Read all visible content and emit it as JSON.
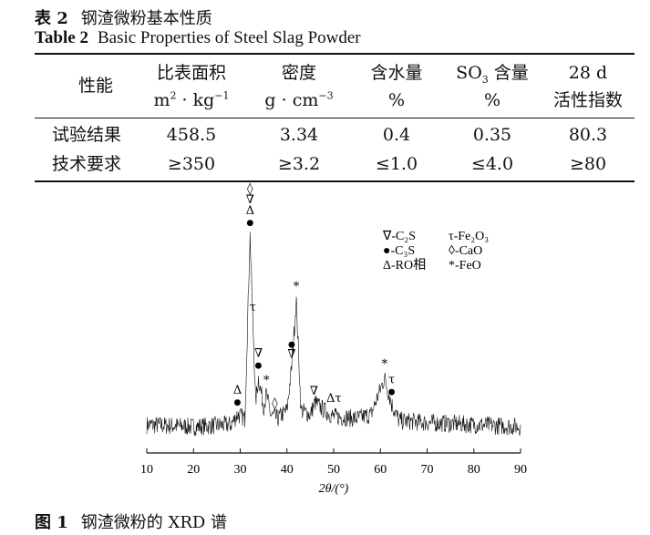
{
  "table": {
    "number": "表 2",
    "title_cn": "钢渣微粉基本性质",
    "number_en": "Table 2",
    "title_en": "Basic Properties of Steel Slag Powder",
    "headers": [
      {
        "line1": "性能",
        "line2": ""
      },
      {
        "line1": "比表面积",
        "line2": "m² · kg⁻¹"
      },
      {
        "line1": "密度",
        "line2": "g · cm⁻³"
      },
      {
        "line1": "含水量",
        "line2": "%"
      },
      {
        "line1": "SO₃ 含量",
        "line2": "%"
      },
      {
        "line1": "28 d",
        "line2": "活性指数"
      }
    ],
    "rows": [
      [
        "试验结果",
        "458.5",
        "3.34",
        "0.4",
        "0.35",
        "80.3"
      ],
      [
        "技术要求",
        "≥350",
        "≥3.2",
        "≤1.0",
        "≤4.0",
        "≥80"
      ]
    ]
  },
  "figure": {
    "number": "图 1",
    "title": "钢渣微粉的 XRD 谱"
  },
  "chart_data": {
    "type": "line",
    "xlabel": "2θ/(°)",
    "ylabel": "",
    "xlim": [
      10,
      90
    ],
    "x_ticks": [
      10,
      20,
      30,
      40,
      50,
      60,
      70,
      80,
      90
    ],
    "y_ticks": [],
    "grid": false,
    "legend_position": "top-right",
    "legend": [
      {
        "symbol": "∇",
        "label": "-C₂S"
      },
      {
        "symbol": "τ",
        "label": "-Fe₂O₃"
      },
      {
        "symbol": "●",
        "label": "-C₃S"
      },
      {
        "symbol": "◊",
        "label": "-CaO"
      },
      {
        "symbol": "Δ",
        "label": "-RO相"
      },
      {
        "symbol": "*",
        "label": "-FeO"
      }
    ],
    "peaks": [
      {
        "x": 29.4,
        "symbols": [
          "Δ",
          "●"
        ]
      },
      {
        "x": 32.1,
        "symbols": [
          "◊",
          "∇",
          "Δ",
          "●"
        ]
      },
      {
        "x": 32.7,
        "symbols": [
          "τ"
        ]
      },
      {
        "x": 33.9,
        "symbols": [
          "∇",
          "●"
        ]
      },
      {
        "x": 35.6,
        "symbols": [
          "*"
        ]
      },
      {
        "x": 37.4,
        "symbols": [
          "◊"
        ]
      },
      {
        "x": 41.0,
        "symbols": [
          "●",
          "∇"
        ]
      },
      {
        "x": 42.0,
        "symbols": [
          "*"
        ]
      },
      {
        "x": 45.8,
        "symbols": [
          "∇"
        ]
      },
      {
        "x": 48.5,
        "symbols": [
          "Δτ"
        ]
      },
      {
        "x": 60.9,
        "symbols": [
          "*"
        ]
      },
      {
        "x": 62.4,
        "symbols": [
          "τ",
          "●"
        ]
      }
    ],
    "intensity_profile": {
      "x": [
        10,
        20,
        28,
        29.4,
        31,
        32.1,
        32.7,
        33.3,
        33.9,
        35,
        35.6,
        36.5,
        38,
        40,
        41,
        42,
        43,
        45,
        46,
        48,
        50,
        55,
        58,
        60.9,
        62.4,
        64,
        70,
        80,
        90
      ],
      "y": [
        7,
        6,
        7,
        12,
        10,
        100,
        58,
        18,
        30,
        16,
        22,
        12,
        10,
        14,
        35,
        68,
        14,
        12,
        18,
        14,
        11,
        10,
        12,
        30,
        17,
        9,
        8,
        7,
        6
      ]
    }
  }
}
